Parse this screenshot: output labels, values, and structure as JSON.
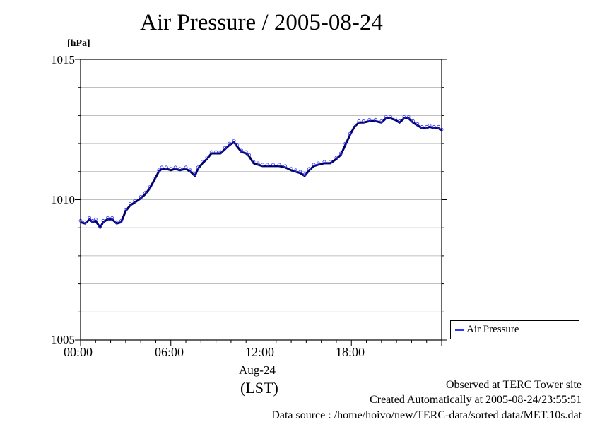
{
  "header": {
    "title": "Air Pressure / 2005-08-24",
    "unit": "[hPa]"
  },
  "axis": {
    "y_ticks": [
      "1015",
      "1010",
      "1005"
    ],
    "x_ticks": [
      "00:00",
      "06:00",
      "12:00",
      "18:00"
    ],
    "date_label": "Aug-24",
    "tz_label": "(LST)"
  },
  "legend": {
    "label": "Air Pressure",
    "color": "#3333ff"
  },
  "footer": {
    "line1": "Observed at TERC Tower site",
    "line2": "Created Automatically at 2005-08-24/23:55:51",
    "line3": "Data source : /home/hoivo/new/TERC-data/sorted  data/MET.10s.dat"
  },
  "chart_data": {
    "type": "line",
    "title": "Air Pressure / 2005-08-24",
    "ylabel": "[hPa]",
    "xlabel": "",
    "x_unit": "hour of day (LST)",
    "xlim": [
      0,
      24
    ],
    "ylim": [
      1005,
      1015
    ],
    "y_ticks": [
      1005,
      1010,
      1015
    ],
    "x_ticks": [
      0,
      6,
      12,
      18
    ],
    "grid": true,
    "legend_position": "right-bottom-outside",
    "series": [
      {
        "name": "Air Pressure",
        "color": "#3333ff",
        "points": [
          [
            0.0,
            1009.2
          ],
          [
            0.3,
            1009.15
          ],
          [
            0.6,
            1009.3
          ],
          [
            0.8,
            1009.2
          ],
          [
            1.0,
            1009.25
          ],
          [
            1.3,
            1009.0
          ],
          [
            1.5,
            1009.2
          ],
          [
            1.8,
            1009.3
          ],
          [
            2.1,
            1009.3
          ],
          [
            2.4,
            1009.15
          ],
          [
            2.7,
            1009.2
          ],
          [
            3.0,
            1009.6
          ],
          [
            3.3,
            1009.8
          ],
          [
            3.6,
            1009.9
          ],
          [
            4.0,
            1010.05
          ],
          [
            4.3,
            1010.2
          ],
          [
            4.6,
            1010.4
          ],
          [
            4.9,
            1010.7
          ],
          [
            5.2,
            1011.0
          ],
          [
            5.4,
            1011.1
          ],
          [
            5.7,
            1011.1
          ],
          [
            6.0,
            1011.05
          ],
          [
            6.3,
            1011.1
          ],
          [
            6.6,
            1011.05
          ],
          [
            7.0,
            1011.1
          ],
          [
            7.3,
            1011.0
          ],
          [
            7.6,
            1010.85
          ],
          [
            7.8,
            1011.1
          ],
          [
            8.1,
            1011.3
          ],
          [
            8.4,
            1011.45
          ],
          [
            8.7,
            1011.65
          ],
          [
            9.0,
            1011.65
          ],
          [
            9.3,
            1011.65
          ],
          [
            9.6,
            1011.8
          ],
          [
            9.9,
            1011.95
          ],
          [
            10.2,
            1012.05
          ],
          [
            10.4,
            1011.9
          ],
          [
            10.7,
            1011.7
          ],
          [
            11.0,
            1011.65
          ],
          [
            11.2,
            1011.55
          ],
          [
            11.5,
            1011.3
          ],
          [
            11.8,
            1011.25
          ],
          [
            12.1,
            1011.2
          ],
          [
            12.4,
            1011.2
          ],
          [
            12.8,
            1011.2
          ],
          [
            13.2,
            1011.2
          ],
          [
            13.6,
            1011.15
          ],
          [
            14.0,
            1011.05
          ],
          [
            14.3,
            1011.0
          ],
          [
            14.6,
            1010.95
          ],
          [
            14.9,
            1010.85
          ],
          [
            15.2,
            1011.05
          ],
          [
            15.5,
            1011.2
          ],
          [
            15.8,
            1011.25
          ],
          [
            16.2,
            1011.3
          ],
          [
            16.6,
            1011.3
          ],
          [
            17.0,
            1011.45
          ],
          [
            17.3,
            1011.6
          ],
          [
            17.6,
            1011.95
          ],
          [
            17.9,
            1012.3
          ],
          [
            18.2,
            1012.6
          ],
          [
            18.5,
            1012.75
          ],
          [
            18.8,
            1012.75
          ],
          [
            19.2,
            1012.8
          ],
          [
            19.6,
            1012.8
          ],
          [
            20.0,
            1012.75
          ],
          [
            20.3,
            1012.9
          ],
          [
            20.6,
            1012.9
          ],
          [
            20.9,
            1012.85
          ],
          [
            21.2,
            1012.75
          ],
          [
            21.5,
            1012.9
          ],
          [
            21.8,
            1012.9
          ],
          [
            22.1,
            1012.75
          ],
          [
            22.4,
            1012.65
          ],
          [
            22.7,
            1012.55
          ],
          [
            23.0,
            1012.55
          ],
          [
            23.2,
            1012.6
          ],
          [
            23.5,
            1012.55
          ],
          [
            23.8,
            1012.55
          ],
          [
            24.0,
            1012.45
          ]
        ]
      }
    ]
  }
}
